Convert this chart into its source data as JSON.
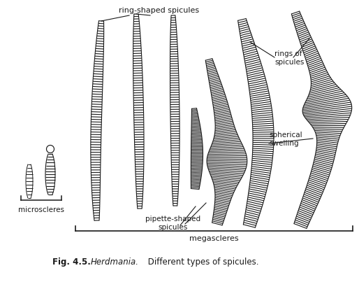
{
  "label_ring_shaped": "ring-shaped spicules",
  "label_rings_of": "rings of\nspicules",
  "label_spherical": "spherical\nswelling",
  "label_pipette": "pipette-shaped\nspicules",
  "label_microscleres": "microscleres",
  "label_megascleres": "megascleres",
  "bg_color": "#ffffff",
  "line_color": "#1a1a1a",
  "fig_width": 5.14,
  "fig_height": 4.13,
  "dpi": 100
}
